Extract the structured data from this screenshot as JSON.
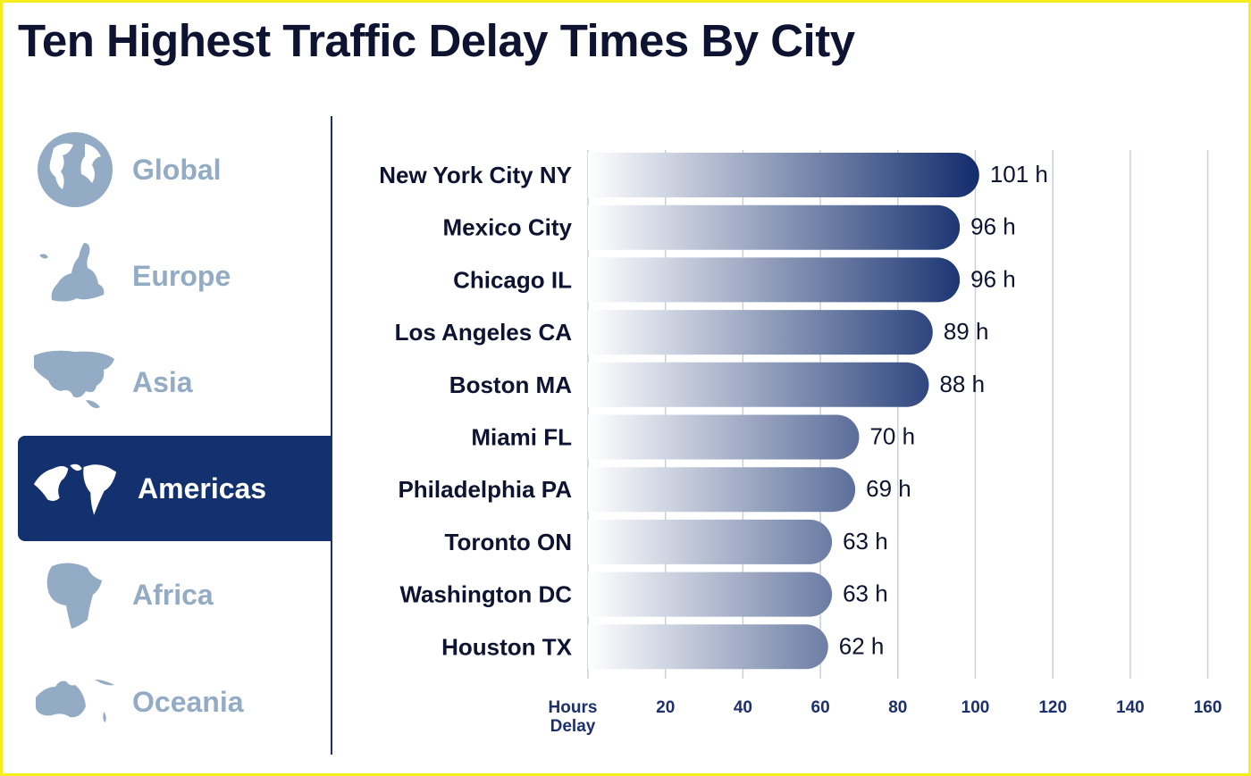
{
  "title": "Ten Highest Traffic Delay Times By City",
  "sidebar": {
    "items": [
      {
        "label": "Global",
        "icon": "globe-icon",
        "active": false
      },
      {
        "label": "Europe",
        "icon": "europe-map-icon",
        "active": false
      },
      {
        "label": "Asia",
        "icon": "asia-map-icon",
        "active": false
      },
      {
        "label": "Americas",
        "icon": "americas-map-icon",
        "active": true
      },
      {
        "label": "Africa",
        "icon": "africa-map-icon",
        "active": false
      },
      {
        "label": "Oceania",
        "icon": "oceania-map-icon",
        "active": false
      }
    ]
  },
  "colors": {
    "bar_start": "#ffffff",
    "bar_end": "#0f2a6b",
    "active_nav": "#13306f",
    "inactive_nav": "#93abc4",
    "frame": "#f5ee1a"
  },
  "chart_data": {
    "type": "bar",
    "orientation": "horizontal",
    "title": "Ten Highest Traffic Delay Times By City",
    "categories": [
      "New York City NY",
      "Mexico City",
      "Chicago IL",
      "Los Angeles CA",
      "Boston MA",
      "Miami FL",
      "Philadelphia PA",
      "Toronto ON",
      "Washington DC",
      "Houston TX"
    ],
    "values": [
      101,
      96,
      96,
      89,
      88,
      70,
      69,
      63,
      63,
      62
    ],
    "value_labels": [
      "101 h",
      "96 h",
      "96 h",
      "89 h",
      "88 h",
      "70 h",
      "69 h",
      "63 h",
      "63 h",
      "62 h"
    ],
    "xlabel": [
      "Hours",
      "Delay"
    ],
    "xticks": [
      20,
      40,
      60,
      80,
      100,
      120,
      140,
      160
    ],
    "xlim": [
      0,
      160
    ],
    "grid": true
  }
}
